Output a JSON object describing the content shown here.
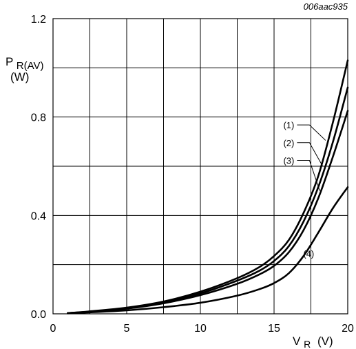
{
  "chart_data": {
    "type": "line",
    "title": "",
    "code_label": "006aac935",
    "ylabel": {
      "main": "P",
      "sub": "R(AV)",
      "unit": "(W)"
    },
    "xlabel": {
      "main": "V",
      "sub": "R",
      "unit": "(V)"
    },
    "xlim": [
      0,
      20
    ],
    "ylim": [
      0.0,
      1.2
    ],
    "x_ticks": [
      {
        "value": 0,
        "label": "0"
      },
      {
        "value": 5,
        "label": "5"
      },
      {
        "value": 10,
        "label": "10"
      },
      {
        "value": 15,
        "label": "15"
      },
      {
        "value": 20,
        "label": "20"
      }
    ],
    "y_ticks": [
      {
        "value": 0.0,
        "label": "0.0"
      },
      {
        "value": 0.4,
        "label": "0.4"
      },
      {
        "value": 0.8,
        "label": "0.8"
      },
      {
        "value": 1.2,
        "label": "1.2"
      }
    ],
    "x_grid": [
      0,
      2.5,
      5,
      7.5,
      10,
      12.5,
      15,
      17.5,
      20
    ],
    "y_grid": [
      0.0,
      0.2,
      0.4,
      0.6,
      0.8,
      1.0,
      1.2
    ],
    "grid": true,
    "line_color": "#000000",
    "grid_color": "#000000",
    "series": [
      {
        "name": "(1)",
        "points": [
          [
            1,
            0.003
          ],
          [
            2.5,
            0.01
          ],
          [
            5,
            0.025
          ],
          [
            7.5,
            0.05
          ],
          [
            10,
            0.09
          ],
          [
            12.5,
            0.145
          ],
          [
            14,
            0.19
          ],
          [
            15,
            0.235
          ],
          [
            16,
            0.3
          ],
          [
            17,
            0.41
          ],
          [
            18,
            0.56
          ],
          [
            19,
            0.78
          ],
          [
            20,
            1.03
          ]
        ]
      },
      {
        "name": "(2)",
        "points": [
          [
            1,
            0.003
          ],
          [
            2.5,
            0.009
          ],
          [
            5,
            0.023
          ],
          [
            7.5,
            0.047
          ],
          [
            10,
            0.083
          ],
          [
            12.5,
            0.135
          ],
          [
            14,
            0.175
          ],
          [
            15,
            0.215
          ],
          [
            16,
            0.275
          ],
          [
            17,
            0.375
          ],
          [
            18,
            0.515
          ],
          [
            19,
            0.7
          ],
          [
            20,
            0.92
          ]
        ]
      },
      {
        "name": "(3)",
        "points": [
          [
            1,
            0.003
          ],
          [
            2.5,
            0.008
          ],
          [
            5,
            0.021
          ],
          [
            7.5,
            0.043
          ],
          [
            10,
            0.076
          ],
          [
            12.5,
            0.122
          ],
          [
            14,
            0.16
          ],
          [
            15,
            0.195
          ],
          [
            16,
            0.25
          ],
          [
            17,
            0.34
          ],
          [
            18,
            0.47
          ],
          [
            19,
            0.64
          ],
          [
            20,
            0.825
          ]
        ]
      },
      {
        "name": "(4)",
        "points": [
          [
            1,
            0.002
          ],
          [
            2.5,
            0.006
          ],
          [
            5,
            0.014
          ],
          [
            7.5,
            0.027
          ],
          [
            10,
            0.045
          ],
          [
            12.5,
            0.074
          ],
          [
            14,
            0.1
          ],
          [
            15,
            0.125
          ],
          [
            16,
            0.165
          ],
          [
            17,
            0.235
          ],
          [
            18,
            0.33
          ],
          [
            19,
            0.43
          ],
          [
            20,
            0.515
          ]
        ]
      }
    ],
    "annotations": [
      {
        "text": "(1)",
        "series": "(1)",
        "label_at": [
          16.0,
          0.768
        ],
        "leader_to": [
          18.5,
          0.705
        ]
      },
      {
        "text": "(2)",
        "series": "(2)",
        "label_at": [
          16.0,
          0.696
        ],
        "leader_to": [
          18.3,
          0.6
        ]
      },
      {
        "text": "(3)",
        "series": "(3)",
        "label_at": [
          16.0,
          0.624
        ],
        "leader_to": [
          18.1,
          0.5
        ]
      },
      {
        "text": "(4)",
        "series": "(4)",
        "label_at": [
          17.35,
          0.245
        ],
        "leader_to": null
      }
    ]
  }
}
